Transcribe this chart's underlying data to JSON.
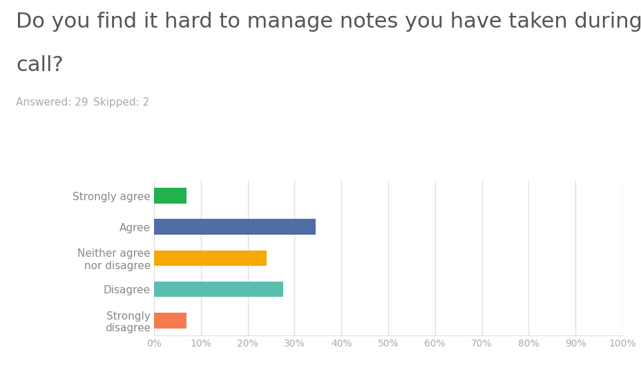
{
  "title_line1": "Do you find it hard to manage notes you have taken during a phone",
  "title_line2": "call?",
  "subtitle_answered": "Answered: 29",
  "subtitle_skipped": "Skipped: 2",
  "categories": [
    "Strongly agree",
    "Agree",
    "Neither agree\nnor disagree",
    "Disagree",
    "Strongly\ndisagree"
  ],
  "values": [
    6.9,
    34.5,
    24.1,
    27.6,
    6.9
  ],
  "bar_colors": [
    "#22b14c",
    "#4f6ea3",
    "#f5a800",
    "#5bbfb0",
    "#f47b50"
  ],
  "title_color": "#555555",
  "subtitle_color": "#aaaaaa",
  "tick_label_color": "#aaaaaa",
  "ytick_label_color": "#888888",
  "background_color": "#ffffff",
  "grid_color": "#e0e0e0",
  "xlim": [
    0,
    100
  ],
  "xticks": [
    0,
    10,
    20,
    30,
    40,
    50,
    60,
    70,
    80,
    90,
    100
  ],
  "xtick_labels": [
    "0%",
    "10%",
    "20%",
    "30%",
    "40%",
    "50%",
    "60%",
    "70%",
    "80%",
    "90%",
    "100%"
  ],
  "title_fontsize": 22,
  "subtitle_fontsize": 11,
  "bar_height": 0.5
}
